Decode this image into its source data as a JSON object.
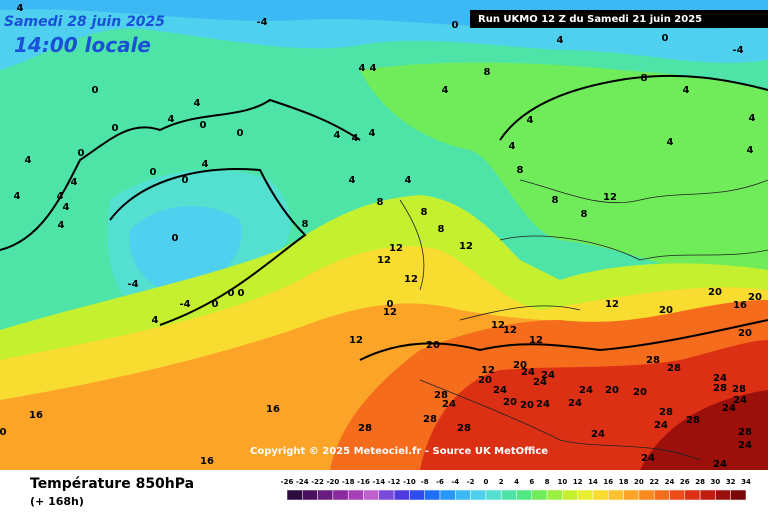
{
  "header": {
    "date": "Samedi 28 juin 2025",
    "time": "14:00 locale",
    "run": "Run UKMO 12 Z du Samedi 21 juin 2025"
  },
  "copyright": "Copyright © 2025 Meteociel.fr - Source UK MetOffice",
  "footer": {
    "title": "Température 850hPa",
    "lead": "(+ 168h)"
  },
  "scale": {
    "ticks": [
      -26,
      -24,
      -22,
      -20,
      -18,
      -16,
      -14,
      -12,
      -10,
      -8,
      -6,
      -4,
      -2,
      0,
      2,
      4,
      6,
      8,
      10,
      12,
      14,
      16,
      18,
      20,
      22,
      24,
      26,
      28,
      30,
      32,
      34
    ],
    "colors": [
      "#2b0a3d",
      "#4a0f5e",
      "#6a1b7e",
      "#8a2a9e",
      "#a640b8",
      "#c060d0",
      "#7a4ad8",
      "#4f3ae0",
      "#2f4cf0",
      "#1f6ef8",
      "#2a96f8",
      "#3cb8f4",
      "#4fd0ee",
      "#54e0d0",
      "#4ee4a8",
      "#50e880",
      "#70ec5a",
      "#9af040",
      "#c4f030",
      "#e8ee30",
      "#f8dc30",
      "#fcc030",
      "#fca428",
      "#f88820",
      "#f46c1c",
      "#ec4c18",
      "#dc3014",
      "#c01c10",
      "#9c100c",
      "#7a0808"
    ]
  },
  "contour_labels": [
    4,
    -4,
    0,
    4,
    0,
    -4,
    4,
    4,
    4,
    8,
    8,
    4,
    0,
    4,
    4,
    0,
    0,
    0,
    4,
    4,
    4,
    4,
    4,
    4,
    8,
    4,
    4,
    4,
    0,
    0,
    0,
    4,
    4,
    4,
    4,
    4,
    4,
    4,
    4,
    8,
    8,
    8,
    12,
    12,
    12,
    12,
    12,
    8,
    8,
    8,
    0,
    -4,
    -4,
    0,
    0,
    0,
    4,
    0,
    12,
    12,
    12,
    12,
    12,
    20,
    20,
    16,
    20,
    20,
    20,
    12,
    12,
    20,
    20,
    24,
    24,
    24,
    20,
    24,
    20,
    28,
    24,
    28,
    28,
    28,
    24,
    28,
    24,
    20,
    20,
    24,
    24,
    28,
    24,
    24,
    28,
    16,
    16,
    28,
    28,
    28,
    24,
    24,
    28,
    24,
    24,
    24,
    16,
    0
  ]
}
